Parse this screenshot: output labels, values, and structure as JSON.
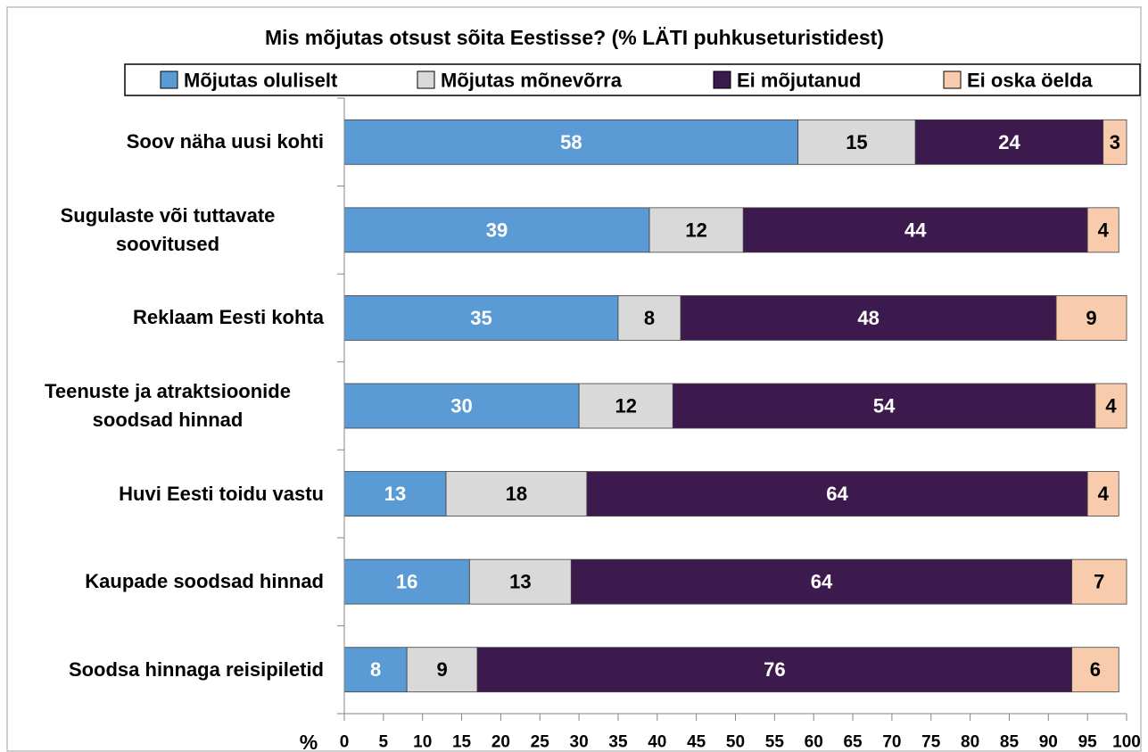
{
  "chart_data": {
    "type": "stacked-bar-horizontal",
    "title": "Mis mõjutas otsust sõita Eestisse? (% LÄTI puhkuseturistidest)",
    "xlabel": "%",
    "categories": [
      "Soov näha uusi kohti",
      "Sugulaste või tuttavate soovitused",
      "Reklaam Eesti kohta",
      "Teenuste ja atraktsioonide soodsad hinnad",
      "Huvi Eesti toidu vastu",
      "Kaupade soodsad hinnad",
      "Soodsa hinnaga reisipiletid"
    ],
    "series": [
      {
        "name": "Mõjutas oluliselt",
        "color": "#5b9bd5",
        "label_color": "#ffffff",
        "values": [
          58,
          39,
          35,
          30,
          13,
          16,
          8
        ]
      },
      {
        "name": "Mõjutas mõnevõrra",
        "color": "#d9d9d9",
        "label_color": "#000000",
        "values": [
          15,
          12,
          8,
          12,
          18,
          13,
          9
        ]
      },
      {
        "name": "Ei mõjutanud",
        "color": "#3c1a4e",
        "label_color": "#ffffff",
        "values": [
          24,
          44,
          48,
          54,
          64,
          64,
          76
        ]
      },
      {
        "name": "Ei oska öelda",
        "color": "#f8cbad",
        "label_color": "#000000",
        "values": [
          3,
          4,
          9,
          4,
          4,
          7,
          6
        ]
      }
    ],
    "xlim": [
      0,
      100
    ],
    "xticks": [
      0,
      5,
      10,
      15,
      20,
      25,
      30,
      35,
      40,
      45,
      50,
      55,
      60,
      65,
      70,
      75,
      80,
      85,
      90,
      95,
      100
    ],
    "legend": "top",
    "grid": false
  }
}
